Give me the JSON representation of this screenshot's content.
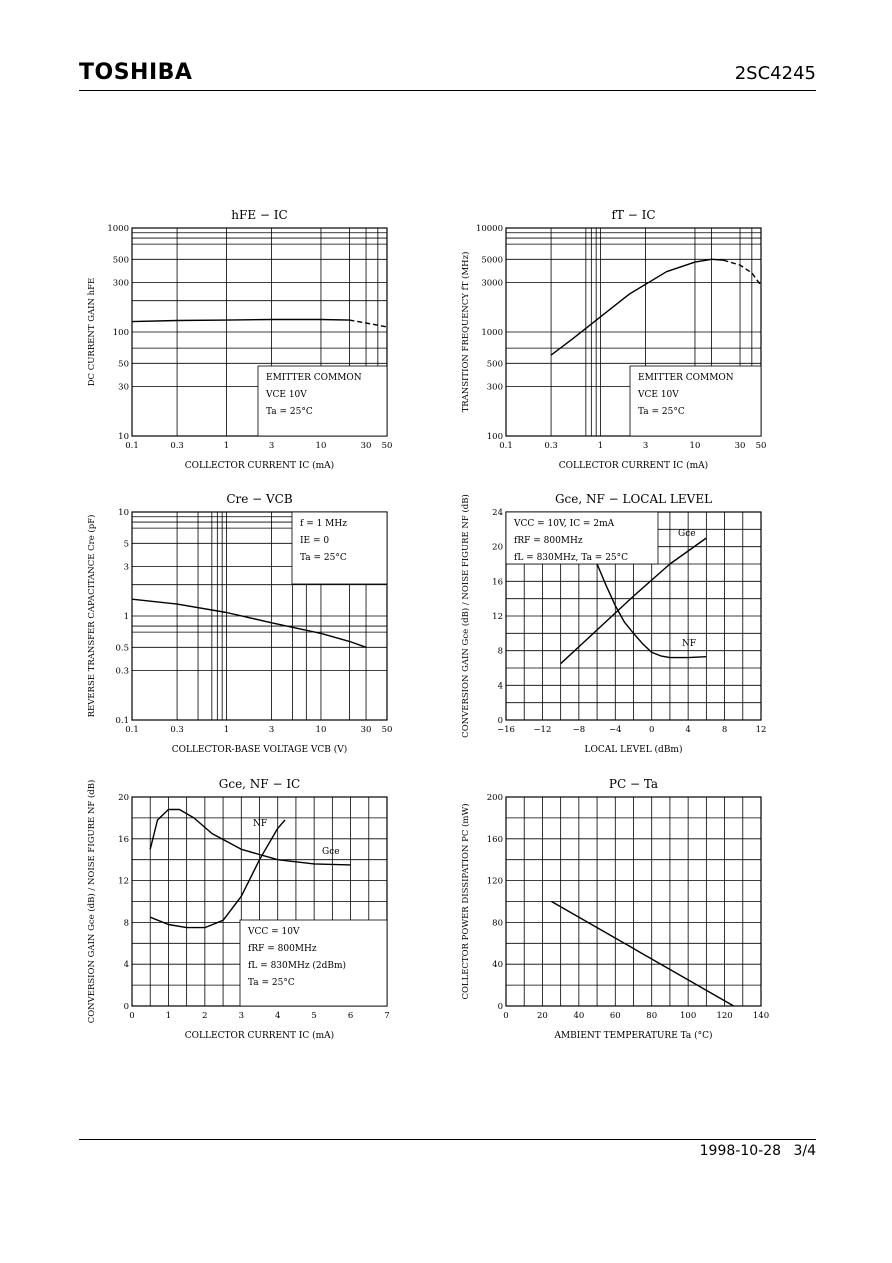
{
  "header": {
    "brand": "TOSHIBA",
    "part_number": "2SC4245"
  },
  "footer": {
    "date": "1998-10-28",
    "page": "3/4"
  },
  "chart_data": [
    {
      "type": "line",
      "title": "hFE − IC",
      "xlabel": "COLLECTOR CURRENT   IC   (mA)",
      "ylabel": "DC CURRENT GAIN   hFE",
      "xscale": "log",
      "yscale": "log",
      "xlim": [
        0.1,
        50
      ],
      "ylim": [
        10,
        1000
      ],
      "xticks": [
        0.1,
        0.3,
        1,
        3,
        10,
        30,
        50
      ],
      "xtick_labels": [
        "0.1",
        "0.3",
        "1",
        "3",
        "10",
        "30",
        "50"
      ],
      "yticks": [
        10,
        30,
        50,
        100,
        300,
        500,
        1000
      ],
      "ytick_labels": [
        "10",
        "30",
        "50",
        "100",
        "300",
        "500",
        "1000"
      ],
      "legend_text": [
        "EMITTER COMMON",
        "VCE   10V",
        "Ta = 25°C"
      ],
      "series": [
        {
          "style": "solid",
          "x": [
            0.1,
            0.3,
            1,
            3,
            10,
            20
          ],
          "y": [
            126,
            129,
            130,
            132,
            132,
            130
          ]
        },
        {
          "style": "dashed",
          "x": [
            20,
            30,
            50
          ],
          "y": [
            130,
            122,
            112
          ]
        }
      ]
    },
    {
      "type": "line",
      "title": "fT − IC",
      "xlabel": "COLLECTOR CURRENT   IC   (mA)",
      "ylabel": "TRANSITION FREQUENCY   fT   (MHz)",
      "xscale": "log",
      "yscale": "log",
      "xlim": [
        0.1,
        50
      ],
      "ylim": [
        100,
        10000
      ],
      "xticks": [
        0.1,
        0.3,
        1,
        3,
        10,
        30,
        50
      ],
      "xtick_labels": [
        "0.1",
        "0.3",
        "1",
        "3",
        "10",
        "30",
        "50"
      ],
      "yticks": [
        100,
        300,
        500,
        1000,
        3000,
        5000,
        10000
      ],
      "ytick_labels": [
        "100",
        "300",
        "500",
        "1000",
        "3000",
        "5000",
        "10000"
      ],
      "legend_text": [
        "EMITTER COMMON",
        "VCE   10V",
        "Ta = 25°C"
      ],
      "series": [
        {
          "style": "solid",
          "x": [
            0.3,
            0.5,
            1,
            2,
            5,
            10,
            15,
            20
          ],
          "y": [
            600,
            850,
            1400,
            2300,
            3800,
            4700,
            5000,
            4900
          ]
        },
        {
          "style": "dashed",
          "x": [
            20,
            30,
            40,
            50
          ],
          "y": [
            4900,
            4400,
            3700,
            2800
          ]
        }
      ]
    },
    {
      "type": "line",
      "title": "Cre − VCB",
      "xlabel": "COLLECTOR-BASE VOLTAGE   VCB   (V)",
      "ylabel": "REVERSE TRANSFER CAPACITANCE   Cre   (pF)",
      "xscale": "log",
      "yscale": "log",
      "xlim": [
        0.1,
        50
      ],
      "ylim": [
        0.1,
        10
      ],
      "xticks": [
        0.1,
        0.3,
        1,
        3,
        10,
        30,
        50
      ],
      "xtick_labels": [
        "0.1",
        "0.3",
        "1",
        "3",
        "10",
        "30",
        "50"
      ],
      "yticks": [
        0.1,
        0.3,
        0.5,
        1,
        3,
        5,
        10
      ],
      "ytick_labels": [
        "0.1",
        "0.3",
        "0.5",
        "1",
        "3",
        "5",
        "10"
      ],
      "legend_text": [
        "f = 1 MHz",
        "IE = 0",
        "Ta = 25°C"
      ],
      "series": [
        {
          "style": "solid",
          "x": [
            0.1,
            0.3,
            1,
            3,
            10,
            20,
            30
          ],
          "y": [
            1.45,
            1.3,
            1.08,
            0.86,
            0.68,
            0.57,
            0.5
          ]
        }
      ]
    },
    {
      "type": "line",
      "title": "Gce, NF − LOCAL LEVEL",
      "xlabel": "LOCAL LEVEL   (dBm)",
      "ylabel": "CONVERSION GAIN  Gce  (dB) / NOISE FIGURE  NF  (dB)",
      "xscale": "linear",
      "yscale": "linear",
      "xlim": [
        -16,
        12
      ],
      "ylim": [
        0,
        24
      ],
      "xticks": [
        -16,
        -12,
        -8,
        -4,
        0,
        4,
        8,
        12
      ],
      "xtick_labels": [
        "−16",
        "−12",
        "−8",
        "−4",
        "0",
        "4",
        "8",
        "12"
      ],
      "yticks": [
        0,
        4,
        8,
        12,
        16,
        20,
        24
      ],
      "ytick_labels": [
        "0",
        "4",
        "8",
        "12",
        "16",
        "20",
        "24"
      ],
      "legend_text": [
        "VCC = 10V,  IC = 2mA",
        "fRF = 800MHz",
        "fL = 830MHz, Ta = 25°C"
      ],
      "series": [
        {
          "name": "Gce",
          "style": "solid",
          "x": [
            -10,
            -6,
            -2,
            2,
            6
          ],
          "y": [
            6.5,
            10.4,
            14.3,
            18.0,
            21.0
          ]
        },
        {
          "name": "NF",
          "style": "solid",
          "x": [
            -6,
            -5,
            -4,
            -3,
            -2,
            -1,
            0,
            1,
            2,
            4,
            6
          ],
          "y": [
            18.0,
            15.5,
            13.2,
            11.3,
            10.0,
            8.8,
            7.8,
            7.4,
            7.2,
            7.2,
            7.3
          ]
        }
      ]
    },
    {
      "type": "line",
      "title": "Gce, NF − IC",
      "xlabel": "COLLECTOR CURRENT   IC   (mA)",
      "ylabel": "CONVERSION GAIN  Gce  (dB) / NOISE FIGURE  NF  (dB)",
      "xscale": "linear",
      "yscale": "linear",
      "xlim": [
        0,
        7
      ],
      "ylim": [
        0,
        20
      ],
      "xticks": [
        0,
        1,
        2,
        3,
        4,
        5,
        6,
        7
      ],
      "xtick_labels": [
        "0",
        "1",
        "2",
        "3",
        "4",
        "5",
        "6",
        "7"
      ],
      "yticks": [
        0,
        4,
        8,
        12,
        16,
        20
      ],
      "ytick_labels": [
        "0",
        "4",
        "8",
        "12",
        "16",
        "20"
      ],
      "legend_text": [
        "VCC = 10V",
        "fRF = 800MHz",
        "fL = 830MHz (2dBm)",
        "Ta = 25°C"
      ],
      "series": [
        {
          "name": "Gce",
          "style": "solid",
          "x": [
            0.5,
            0.7,
            1.0,
            1.3,
            1.7,
            2.2,
            3.0,
            4.0,
            5.0,
            6.0
          ],
          "y": [
            15.0,
            17.8,
            18.8,
            18.8,
            18.0,
            16.5,
            15.0,
            14.0,
            13.6,
            13.5
          ]
        },
        {
          "name": "NF",
          "style": "solid",
          "x": [
            0.5,
            1.0,
            1.5,
            2.0,
            2.5,
            3.0,
            3.5,
            4.0,
            4.2
          ],
          "y": [
            8.5,
            7.8,
            7.5,
            7.5,
            8.2,
            10.5,
            14.0,
            17.0,
            17.8
          ]
        }
      ]
    },
    {
      "type": "line",
      "title": "PC − Ta",
      "xlabel": "AMBIENT TEMPERATURE   Ta   (°C)",
      "ylabel": "COLLECTOR POWER DISSIPATION   PC   (mW)",
      "xscale": "linear",
      "yscale": "linear",
      "xlim": [
        0,
        140
      ],
      "ylim": [
        0,
        200
      ],
      "xticks": [
        0,
        20,
        40,
        60,
        80,
        100,
        120,
        140
      ],
      "xtick_labels": [
        "0",
        "20",
        "40",
        "60",
        "80",
        "100",
        "120",
        "140"
      ],
      "yticks": [
        0,
        40,
        80,
        120,
        160,
        200
      ],
      "ytick_labels": [
        "0",
        "40",
        "80",
        "120",
        "160",
        "200"
      ],
      "series": [
        {
          "style": "solid",
          "x": [
            25,
            125
          ],
          "y": [
            100,
            0
          ]
        }
      ]
    }
  ]
}
